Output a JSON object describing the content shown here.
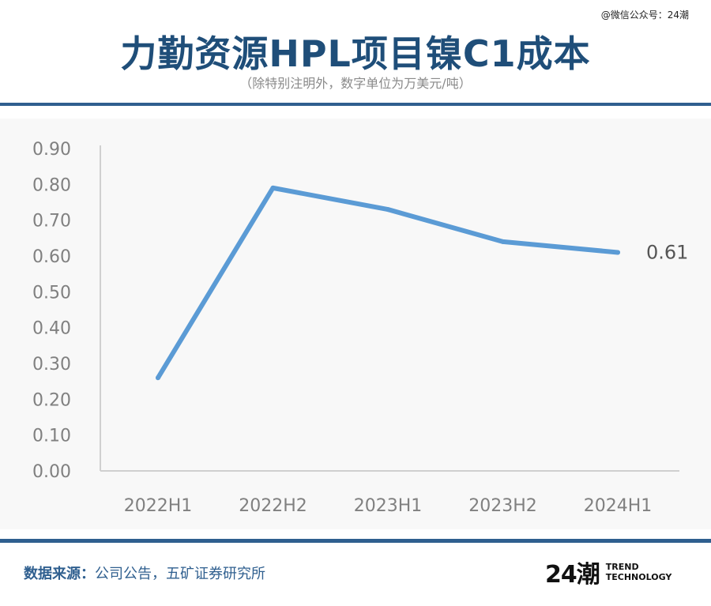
{
  "watermark": "@微信公众号：24潮",
  "title": "力勤资源HPL项目镍C1成本",
  "subtitle": "（除特别注明外，数字单位为万美元/吨）",
  "footer": {
    "source_label": "数据来源：",
    "source_text": "公司公告，五矿证券研究所"
  },
  "logo": {
    "mark": "24潮",
    "line1": "TREND",
    "line2": "TECHNOLOGY"
  },
  "colors": {
    "accent": "#1f4e79",
    "rule": "#2f5f8f",
    "line": "#5b9bd5",
    "axis": "#d0d0d0",
    "tick_text": "#808080"
  },
  "chart_data": {
    "type": "line",
    "categories": [
      "2022H1",
      "2022H2",
      "2023H1",
      "2023H2",
      "2024H1"
    ],
    "values": [
      0.26,
      0.79,
      0.73,
      0.64,
      0.61
    ],
    "y_ticks": [
      "0.00",
      "0.10",
      "0.20",
      "0.30",
      "0.40",
      "0.50",
      "0.60",
      "0.70",
      "0.80",
      "0.90"
    ],
    "ylim": [
      0,
      0.9
    ],
    "grid": false,
    "data_labels": [
      {
        "index": 4,
        "text": "0.61"
      }
    ]
  }
}
